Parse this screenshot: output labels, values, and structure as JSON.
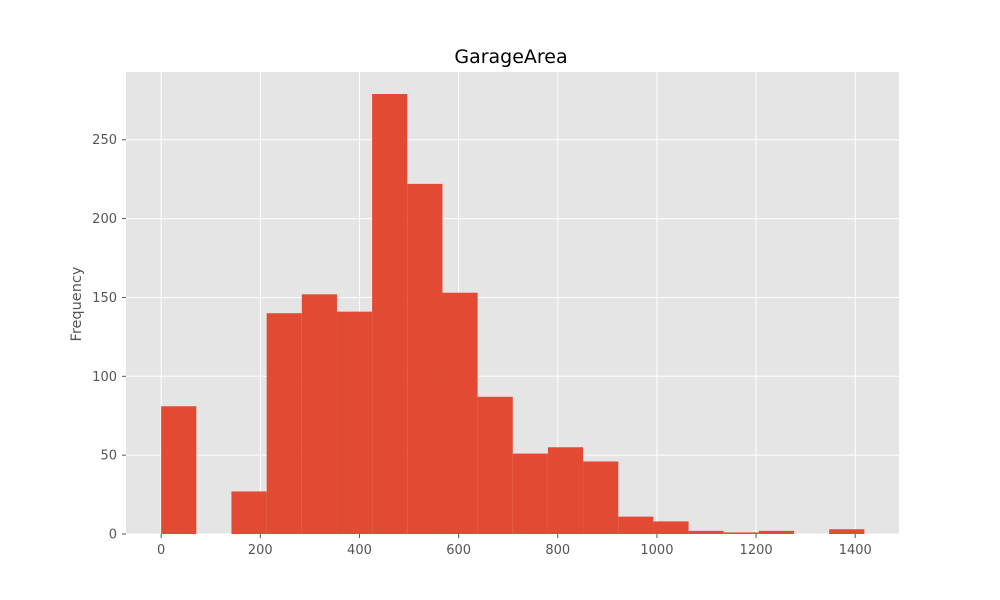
{
  "chart_data": {
    "type": "bar",
    "title": "GarageArea",
    "xlabel": "",
    "ylabel": "Frequency",
    "xlim": [
      -70.92,
      1488.24
    ],
    "ylim": [
      0,
      292.95
    ],
    "xticks": [
      0,
      200,
      400,
      600,
      800,
      1000,
      1200,
      1400
    ],
    "yticks": [
      0,
      50,
      100,
      150,
      200,
      250
    ],
    "grid": true,
    "legend": "none",
    "bar_color": "#E24A33",
    "background_color": "#E5E5E5",
    "grid_color": "#FFFFFF",
    "bins": [
      {
        "start": 0.0,
        "end": 70.9,
        "count": 81
      },
      {
        "start": 70.9,
        "end": 141.8,
        "count": 0
      },
      {
        "start": 141.8,
        "end": 212.8,
        "count": 27
      },
      {
        "start": 212.8,
        "end": 283.7,
        "count": 140
      },
      {
        "start": 283.7,
        "end": 354.6,
        "count": 152
      },
      {
        "start": 354.6,
        "end": 425.5,
        "count": 141
      },
      {
        "start": 425.5,
        "end": 496.4,
        "count": 279
      },
      {
        "start": 496.4,
        "end": 567.4,
        "count": 222
      },
      {
        "start": 567.4,
        "end": 638.3,
        "count": 153
      },
      {
        "start": 638.3,
        "end": 709.2,
        "count": 87
      },
      {
        "start": 709.2,
        "end": 780.1,
        "count": 51
      },
      {
        "start": 780.1,
        "end": 851.0,
        "count": 55
      },
      {
        "start": 851.0,
        "end": 922.0,
        "count": 46
      },
      {
        "start": 922.0,
        "end": 992.9,
        "count": 11
      },
      {
        "start": 992.9,
        "end": 1063.8,
        "count": 8
      },
      {
        "start": 1063.8,
        "end": 1134.7,
        "count": 2
      },
      {
        "start": 1134.7,
        "end": 1205.6,
        "count": 1
      },
      {
        "start": 1205.6,
        "end": 1276.6,
        "count": 2
      },
      {
        "start": 1276.6,
        "end": 1347.5,
        "count": 0
      },
      {
        "start": 1347.5,
        "end": 1418.4,
        "count": 3
      }
    ]
  }
}
